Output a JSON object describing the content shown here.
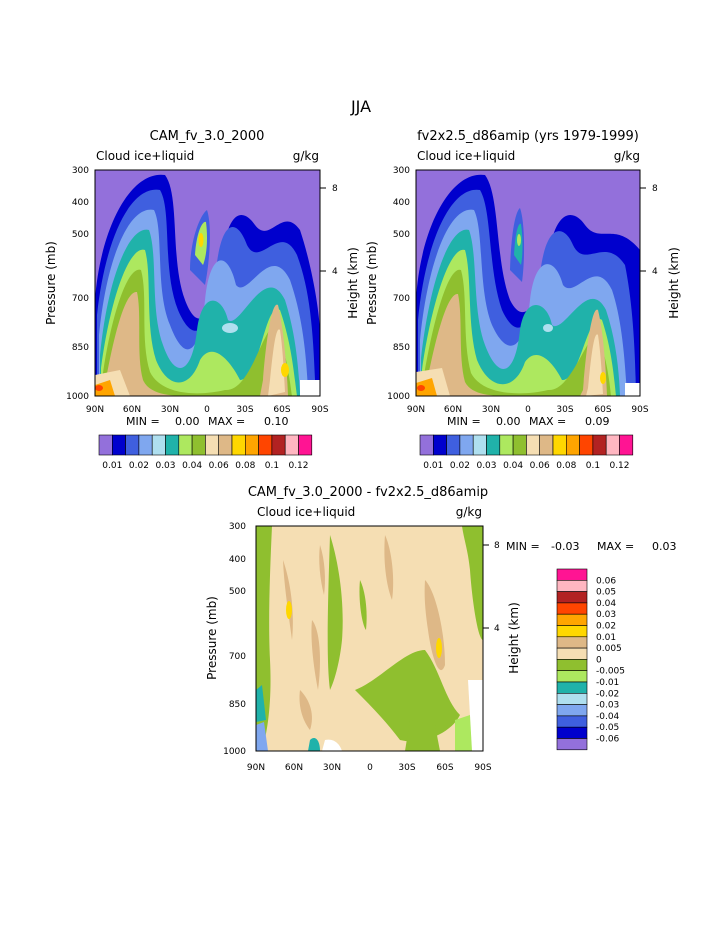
{
  "chart_data": {
    "title": "JJA",
    "panels": [
      {
        "type": "heatmap",
        "title": "CAM_fv_3.0_2000",
        "variable": "Cloud ice+liquid",
        "units": "g/kg",
        "min_label": "MIN =",
        "min_value": "0.00",
        "max_label": "MAX =",
        "max_value": "0.10",
        "xlabel": "",
        "ylabel": "Pressure (mb)",
        "y2label": "Height (km)",
        "x_ticks": [
          "90N",
          "60N",
          "30N",
          "0",
          "30S",
          "60S",
          "90S"
        ],
        "y_ticks": [
          "300",
          "400",
          "500",
          "700",
          "850",
          "1000"
        ],
        "y2_ticks": [
          "8",
          "4"
        ],
        "levels": [
          0.01,
          0.015,
          0.02,
          0.025,
          0.03,
          0.035,
          0.04,
          0.05,
          0.06,
          0.07,
          0.08,
          0.09,
          0.1,
          0.11,
          0.12
        ],
        "colorbar_labels": [
          "0.01",
          "0.02",
          "0.03",
          "0.04",
          "0.06",
          "0.08",
          "0.1",
          "0.12"
        ],
        "fill_colors": [
          "#9370DB",
          "#0000CD",
          "#3F5FDF",
          "#7FA7EF",
          "#AFDFEF",
          "#20B2AA",
          "#ADE85F",
          "#8FBF2F",
          "#F5DEB3",
          "#DEB887",
          "#FFD700",
          "#FFA500",
          "#FF4500",
          "#B22222",
          "#FFB6C1",
          "#FF1493"
        ]
      },
      {
        "type": "heatmap",
        "title": "fv2x2.5_d86amip (yrs 1979-1999)",
        "variable": "Cloud ice+liquid",
        "units": "g/kg",
        "min_label": "MIN =",
        "min_value": "0.00",
        "max_label": "MAX =",
        "max_value": "0.09",
        "xlabel": "",
        "ylabel": "Pressure (mb)",
        "y2label": "Height (km)",
        "x_ticks": [
          "90N",
          "60N",
          "30N",
          "0",
          "30S",
          "60S",
          "90S"
        ],
        "y_ticks": [
          "300",
          "400",
          "500",
          "700",
          "850",
          "1000"
        ],
        "y2_ticks": [
          "8",
          "4"
        ],
        "levels": [
          0.01,
          0.015,
          0.02,
          0.025,
          0.03,
          0.035,
          0.04,
          0.05,
          0.06,
          0.07,
          0.08,
          0.09,
          0.1,
          0.11,
          0.12
        ],
        "colorbar_labels": [
          "0.01",
          "0.02",
          "0.03",
          "0.04",
          "0.06",
          "0.08",
          "0.1",
          "0.12"
        ],
        "fill_colors": [
          "#9370DB",
          "#0000CD",
          "#3F5FDF",
          "#7FA7EF",
          "#AFDFEF",
          "#20B2AA",
          "#ADE85F",
          "#8FBF2F",
          "#F5DEB3",
          "#DEB887",
          "#FFD700",
          "#FFA500",
          "#FF4500",
          "#B22222",
          "#FFB6C1",
          "#FF1493"
        ]
      },
      {
        "type": "heatmap",
        "title": "CAM_fv_3.0_2000 - fv2x2.5_d86amip",
        "variable": "Cloud ice+liquid",
        "units": "g/kg",
        "min_label": "MIN =",
        "min_value": "-0.03",
        "max_label": "MAX =",
        "max_value": "0.03",
        "xlabel": "",
        "ylabel": "Pressure (mb)",
        "y2label": "Height (km)",
        "x_ticks": [
          "90N",
          "60N",
          "30N",
          "0",
          "30S",
          "60S",
          "90S"
        ],
        "y_ticks": [
          "300",
          "400",
          "500",
          "700",
          "850",
          "1000"
        ],
        "y2_ticks": [
          "8",
          "4"
        ],
        "colorbar_labels": [
          "0.06",
          "0.05",
          "0.04",
          "0.03",
          "0.02",
          "0.01",
          "0.005",
          "0",
          "-0.005",
          "-0.01",
          "-0.02",
          "-0.03",
          "-0.04",
          "-0.05",
          "-0.06"
        ],
        "fill_colors": [
          "#FF1493",
          "#FFB6C1",
          "#B22222",
          "#FF4500",
          "#FFA500",
          "#FFD700",
          "#DEB887",
          "#F5DEB3",
          "#8FBF2F",
          "#ADE85F",
          "#20B2AA",
          "#AFDFEF",
          "#7FA7EF",
          "#3F5FDF",
          "#0000CD",
          "#9370DB"
        ]
      }
    ]
  }
}
